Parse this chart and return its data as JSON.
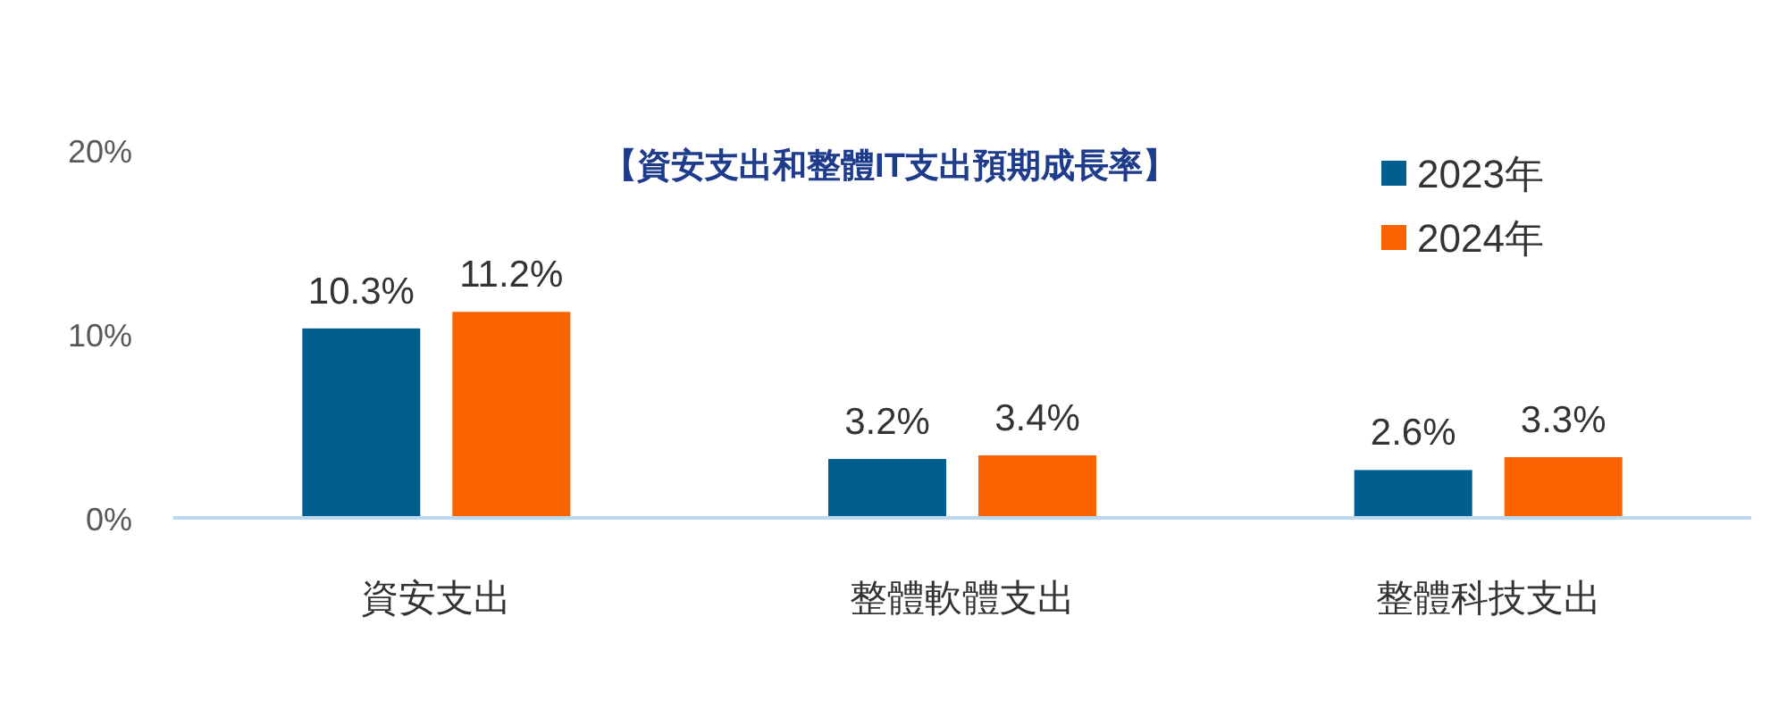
{
  "chart_data": {
    "type": "bar",
    "title": "【資安支出和整體IT支出預期成長率】",
    "categories": [
      "資安支出",
      "整體軟體支出",
      "整體科技支出"
    ],
    "series": [
      {
        "name": "2023年",
        "color": "#005f8f",
        "values": [
          10.3,
          3.2,
          2.6
        ],
        "value_labels": [
          "10.3%",
          "3.2%",
          "2.6%"
        ]
      },
      {
        "name": "2024年",
        "color": "#f96300",
        "values": [
          11.2,
          3.4,
          3.3
        ],
        "value_labels": [
          "11.2%",
          "3.4%",
          "3.3%"
        ]
      }
    ],
    "ylim": [
      0,
      20
    ],
    "yticks": [
      {
        "value": 0,
        "label": "0%"
      },
      {
        "value": 10,
        "label": "10%"
      },
      {
        "value": 20,
        "label": "20%"
      }
    ],
    "legend": "top right"
  }
}
